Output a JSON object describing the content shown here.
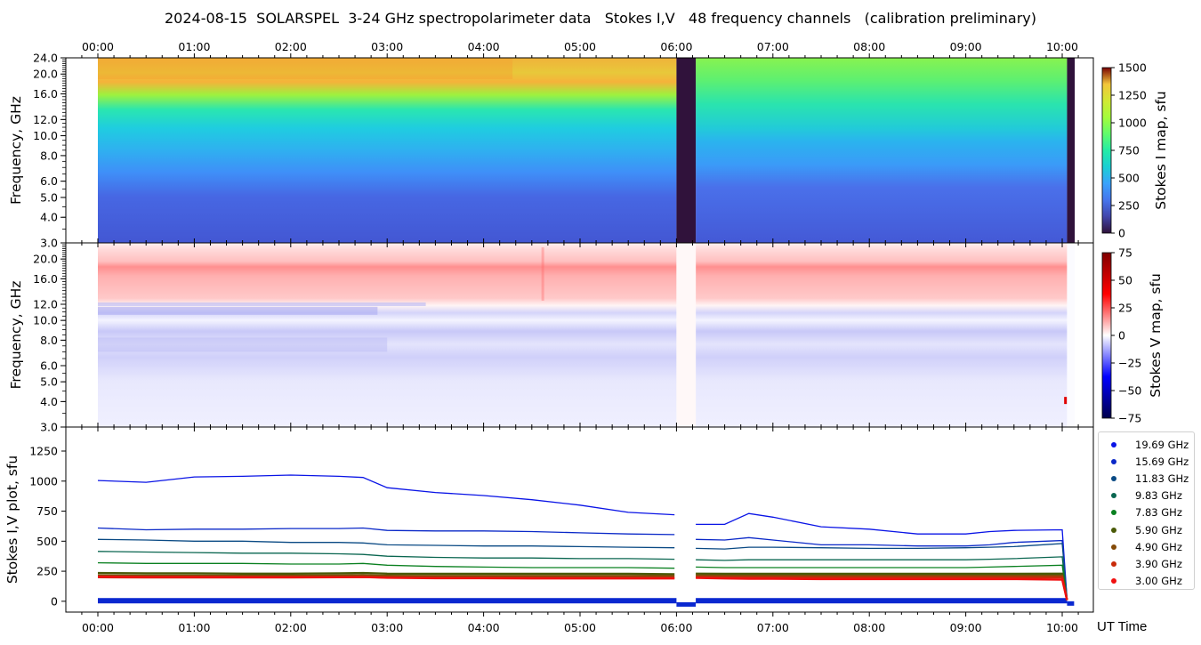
{
  "title": "2024-08-15  SOLARSPEL  3-24 GHz spectropolarimeter data   Stokes I,V   48 frequency channels   (calibration preliminary)",
  "time_axis": {
    "label": "UT Time",
    "ticks": [
      "00:00",
      "01:00",
      "02:00",
      "03:00",
      "04:00",
      "05:00",
      "06:00",
      "07:00",
      "08:00",
      "09:00",
      "10:00"
    ],
    "range_hours": [
      -0.33,
      10.33
    ]
  },
  "chart_data": [
    {
      "type": "heatmap",
      "name": "stokes-i-map",
      "ylabel": "Frequency, GHz",
      "yticks": [
        "3.0",
        "4.0",
        "5.0",
        "6.0",
        "8.0",
        "10.0",
        "12.0",
        "16.0",
        "20.0",
        "24.0"
      ],
      "ylim_ghz": [
        3.0,
        24.0
      ],
      "data_start_hour": 0.0,
      "data_end_hour": 10.13,
      "gaps_hours": [
        [
          6.0,
          6.2
        ],
        [
          10.05,
          10.13
        ]
      ],
      "colorbar": {
        "label": "Stokes I map, sfu",
        "ticks": [
          "0",
          "250",
          "500",
          "750",
          "1000",
          "1250",
          "1500"
        ],
        "range": [
          0,
          1500
        ],
        "colormap": "turbo"
      },
      "spectrum_profile_sfu": [
        {
          "ghz": 3.0,
          "sfu": 50
        },
        {
          "ghz": 6.0,
          "sfu": 150
        },
        {
          "ghz": 8.0,
          "sfu": 280
        },
        {
          "ghz": 12.0,
          "sfu": 420
        },
        {
          "ghz": 16.0,
          "sfu": 600
        },
        {
          "ghz": 20.0,
          "sfu": 900
        },
        {
          "ghz": 24.0,
          "sfu": 1000
        }
      ]
    },
    {
      "type": "heatmap",
      "name": "stokes-v-map",
      "ylabel": "Frequency, GHz",
      "yticks": [
        "3.0",
        "4.0",
        "5.0",
        "6.0",
        "8.0",
        "10.0",
        "12.0",
        "16.0",
        "20.0"
      ],
      "ylim_ghz": [
        3.0,
        24.0
      ],
      "colorbar": {
        "label": "Stokes V map, sfu",
        "ticks": [
          "−75",
          "−50",
          "−25",
          "0",
          "25",
          "50",
          "75"
        ],
        "range": [
          -75,
          75
        ],
        "colormap": "seismic"
      }
    },
    {
      "type": "line",
      "name": "stokes-iv-plot",
      "ylabel": "Stokes I,V plot, sfu",
      "yticks": [
        "0",
        "250",
        "500",
        "750",
        "1000",
        "1250"
      ],
      "ylim": [
        -90,
        1450
      ],
      "x_hours": [
        0,
        0.5,
        1,
        1.5,
        2,
        2.5,
        2.75,
        3,
        3.5,
        4,
        4.5,
        5,
        5.5,
        5.98,
        6.2,
        6.5,
        6.75,
        7,
        7.5,
        8,
        8.5,
        9,
        9.25,
        9.5,
        10.0,
        10.05
      ],
      "series": [
        {
          "name": "19.69 GHz",
          "color": "#0a14e6",
          "values": [
            1005,
            990,
            1035,
            1040,
            1050,
            1040,
            1030,
            945,
            905,
            880,
            845,
            800,
            740,
            720,
            640,
            640,
            730,
            700,
            620,
            600,
            560,
            560,
            580,
            590,
            595,
            20
          ]
        },
        {
          "name": "15.69 GHz",
          "color": "#0a28c8",
          "values": [
            610,
            595,
            600,
            600,
            605,
            605,
            610,
            590,
            585,
            585,
            580,
            570,
            560,
            555,
            515,
            510,
            530,
            510,
            470,
            470,
            460,
            460,
            470,
            490,
            505,
            20
          ]
        },
        {
          "name": "11.83 GHz",
          "color": "#0a4a84",
          "values": [
            515,
            510,
            500,
            500,
            490,
            490,
            485,
            470,
            465,
            460,
            460,
            455,
            450,
            445,
            440,
            435,
            450,
            450,
            445,
            440,
            440,
            445,
            450,
            455,
            480,
            15
          ]
        },
        {
          "name": "9.83 GHz",
          "color": "#0a6650",
          "values": [
            415,
            410,
            405,
            400,
            400,
            395,
            390,
            375,
            365,
            360,
            360,
            355,
            355,
            350,
            345,
            340,
            345,
            345,
            345,
            345,
            345,
            345,
            350,
            355,
            370,
            10
          ]
        },
        {
          "name": "7.83 GHz",
          "color": "#0a8020",
          "values": [
            320,
            315,
            315,
            315,
            310,
            310,
            315,
            300,
            290,
            285,
            280,
            280,
            280,
            275,
            285,
            280,
            280,
            280,
            280,
            280,
            280,
            280,
            285,
            290,
            300,
            10
          ]
        },
        {
          "name": "5.90 GHz",
          "color": "#4a5a08",
          "values": [
            235,
            232,
            232,
            230,
            230,
            232,
            235,
            230,
            228,
            228,
            228,
            228,
            228,
            225,
            230,
            228,
            228,
            228,
            228,
            228,
            228,
            228,
            228,
            228,
            230,
            10
          ]
        },
        {
          "name": "4.90 GHz",
          "color": "#844a08",
          "values": [
            215,
            212,
            212,
            212,
            212,
            214,
            216,
            212,
            210,
            210,
            210,
            210,
            210,
            210,
            215,
            212,
            212,
            212,
            212,
            212,
            212,
            212,
            212,
            212,
            212,
            10
          ]
        },
        {
          "name": "3.90 GHz",
          "color": "#c82a0a",
          "values": [
            200,
            198,
            198,
            198,
            198,
            200,
            202,
            198,
            195,
            195,
            195,
            195,
            195,
            195,
            200,
            198,
            198,
            198,
            198,
            198,
            198,
            198,
            198,
            198,
            198,
            10
          ]
        },
        {
          "name": "3.00 GHz",
          "color": "#f01010",
          "values": [
            205,
            202,
            202,
            200,
            200,
            200,
            202,
            196,
            192,
            192,
            190,
            190,
            190,
            190,
            195,
            190,
            188,
            188,
            185,
            185,
            185,
            185,
            185,
            185,
            180,
            10
          ]
        }
      ],
      "stokes_v_traces_sfu": [
        5,
        12
      ]
    }
  ]
}
